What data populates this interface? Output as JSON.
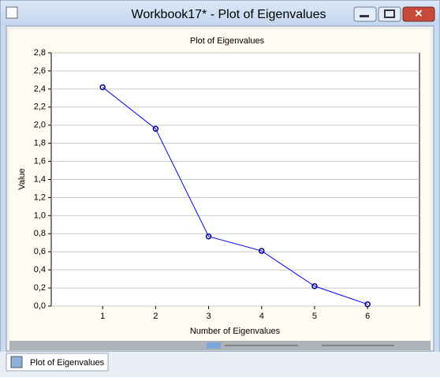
{
  "window": {
    "title": "Workbook17* - Plot of Eigenvalues"
  },
  "tab": {
    "label": "Plot of Eigenvalues"
  },
  "chart_data": {
    "type": "line",
    "title": "Plot of Eigenvalues",
    "x_label": "Number of Eigenvalues",
    "y_label": "Value",
    "x": [
      1,
      2,
      3,
      4,
      5,
      6
    ],
    "series": [
      {
        "name": "Eigenvalues",
        "color": "#0000ff",
        "values": [
          2.42,
          1.96,
          0.77,
          0.61,
          0.22,
          0.02
        ]
      }
    ],
    "xlim": [
      0.03,
      6.98
    ],
    "xticks": [
      1,
      2,
      3,
      4,
      5,
      6
    ],
    "ylim": [
      0,
      2.8
    ],
    "yticks": [
      {
        "value": 0,
        "label": "0,0"
      },
      {
        "value": 0.2,
        "label": "0,2"
      },
      {
        "value": 0.4,
        "label": "0,4"
      },
      {
        "value": 0.6,
        "label": "0,6"
      },
      {
        "value": 0.8,
        "label": "0,8"
      },
      {
        "value": 1.0,
        "label": "1,0"
      },
      {
        "value": 1.2,
        "label": "1,2"
      },
      {
        "value": 1.4,
        "label": "1,4"
      },
      {
        "value": 1.6,
        "label": "1,6"
      },
      {
        "value": 1.8,
        "label": "1,8"
      },
      {
        "value": 2.0,
        "label": "2,0"
      },
      {
        "value": 2.2,
        "label": "2,2"
      },
      {
        "value": 2.4,
        "label": "2,4"
      },
      {
        "value": 2.6,
        "label": "2,6"
      },
      {
        "value": 2.8,
        "label": "2,8"
      }
    ],
    "grid": true
  }
}
